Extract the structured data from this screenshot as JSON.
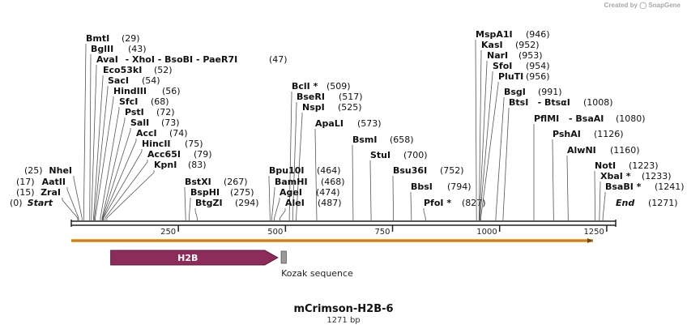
{
  "credit": {
    "prefix": "Created by",
    "brand": "SnapGene"
  },
  "plasmid": {
    "name": "mCrimson-H2B-6",
    "length_label": "1271 bp",
    "length": 1271
  },
  "axis": {
    "ticks": [
      250,
      500,
      750,
      1000,
      1250
    ]
  },
  "colors": {
    "h2b": "#8b2c5a",
    "orf": "#f2a33a",
    "kozak": "#9a9a9a"
  },
  "features": [
    {
      "name": "H2B",
      "type": "cds-arrow",
      "start": 92,
      "end": 482
    },
    {
      "name": "Kozak sequence",
      "type": "box",
      "start": 490,
      "end": 502
    }
  ],
  "sites": [
    {
      "label": "BmtI",
      "pos": "29"
    },
    {
      "label": "BglII",
      "pos": "43"
    },
    {
      "label": "AvaI",
      "extra": [
        "XhoI",
        "BsoBI",
        "PaeR7I"
      ],
      "pos": "47"
    },
    {
      "label": "Eco53kI",
      "pos": "52"
    },
    {
      "label": "SacI",
      "pos": "54"
    },
    {
      "label": "HindIII",
      "pos": "56"
    },
    {
      "label": "SfcI",
      "pos": "68"
    },
    {
      "label": "PstI",
      "pos": "72"
    },
    {
      "label": "SalI",
      "pos": "73"
    },
    {
      "label": "AccI",
      "pos": "74"
    },
    {
      "label": "HincII",
      "pos": "75"
    },
    {
      "label": "Acc65I",
      "pos": "79"
    },
    {
      "label": "KpnI",
      "pos": "83"
    },
    {
      "label": "NheI",
      "pos": "25"
    },
    {
      "label": "AatII",
      "pos": "17"
    },
    {
      "label": "ZraI",
      "pos": "15"
    },
    {
      "label": "Start",
      "pos": "0"
    },
    {
      "label": "BstXI",
      "pos": "267"
    },
    {
      "label": "BspHI",
      "pos": "275"
    },
    {
      "label": "BtgZI",
      "pos": "294"
    },
    {
      "label": "BclI *",
      "pos": "509"
    },
    {
      "label": "BseRI",
      "pos": "517"
    },
    {
      "label": "NspI",
      "pos": "525"
    },
    {
      "label": "ApaLI",
      "pos": "573"
    },
    {
      "label": "Bpu10I",
      "pos": "464"
    },
    {
      "label": "BamHI",
      "pos": "468"
    },
    {
      "label": "AgeI",
      "pos": "474"
    },
    {
      "label": "AleI",
      "pos": "487"
    },
    {
      "label": "BsmI",
      "pos": "658"
    },
    {
      "label": "StuI",
      "pos": "700"
    },
    {
      "label": "Bsu36I",
      "pos": "752"
    },
    {
      "label": "BbsI",
      "pos": "794"
    },
    {
      "label": "PfoI *",
      "pos": "827"
    },
    {
      "label": "MspA1I",
      "pos": "946"
    },
    {
      "label": "KasI",
      "pos": "952"
    },
    {
      "label": "NarI",
      "pos": "953"
    },
    {
      "label": "SfoI",
      "pos": "954"
    },
    {
      "label": "PluTI",
      "pos": "956"
    },
    {
      "label": "BsgI",
      "pos": "991"
    },
    {
      "label": "BtsI",
      "extra": [
        "BtsαI"
      ],
      "pos": "1008"
    },
    {
      "label": "PflMI",
      "extra": [
        "BsaAI"
      ],
      "pos": "1080"
    },
    {
      "label": "PshAI",
      "pos": "1126"
    },
    {
      "label": "AlwNI",
      "pos": "1160"
    },
    {
      "label": "NotI",
      "pos": "1223"
    },
    {
      "label": "XbaI *",
      "pos": "1233"
    },
    {
      "label": "BsaBI *",
      "pos": "1241"
    },
    {
      "label": "End",
      "pos": "1271"
    }
  ]
}
